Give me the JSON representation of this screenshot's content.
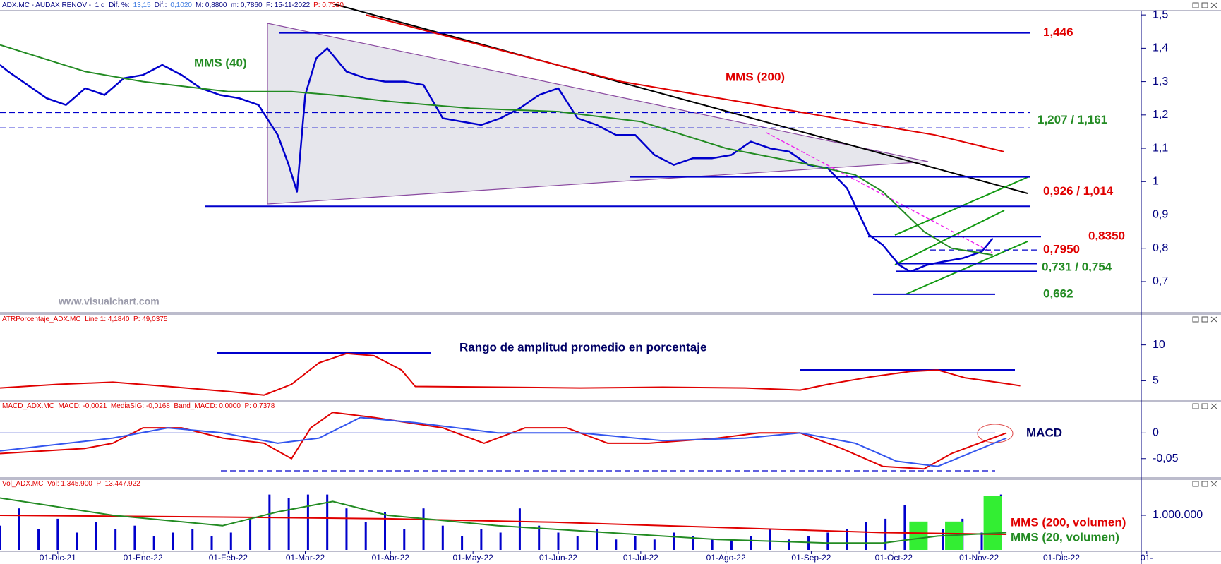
{
  "chart_data": [
    {
      "type": "line",
      "header": [
        {
          "text": "ADX.MC - AUDAX RENOV -  1 d  Dif. %:",
          "color": "#000080"
        },
        {
          "text": "13,15",
          "color": "#3d7be0"
        },
        {
          "text": "Dif.:",
          "color": "#000080"
        },
        {
          "text": "0,1020",
          "color": "#3d7be0"
        },
        {
          "text": "M: 0,8800  m: 0,7860  F: 15-11-2022",
          "color": "#000080"
        },
        {
          "text": "P: 0,7320",
          "color": "#e00000"
        }
      ],
      "xlim": [
        -21,
        394
      ],
      "ylim": [
        0.611,
        1.513
      ],
      "yticks": [
        {
          "value": 1.5,
          "label": "1,5"
        },
        {
          "value": 1.4,
          "label": "1,4"
        },
        {
          "value": 1.3,
          "label": "1,3"
        },
        {
          "value": 1.2,
          "label": "1,2"
        },
        {
          "value": 1.1,
          "label": "1,1"
        },
        {
          "value": 1,
          "label": "1"
        },
        {
          "value": 0.9,
          "label": "0,9"
        },
        {
          "value": 0.8,
          "label": "0,8"
        },
        {
          "value": 0.7,
          "label": "0,7"
        }
      ],
      "series": [
        {
          "color": "#0000cc",
          "x": [
            -21,
            -18,
            -11,
            -4,
            3,
            10,
            17,
            24,
            31,
            38,
            45,
            52,
            59,
            66,
            73,
            80,
            84,
            87,
            90,
            94,
            98,
            105,
            112,
            119,
            126,
            133,
            140,
            147,
            154,
            161,
            168,
            175,
            182,
            189,
            196,
            203,
            210,
            217,
            224,
            231,
            238,
            245,
            252,
            259,
            266,
            273,
            280,
            287,
            291,
            295,
            300,
            306,
            310,
            316,
            322,
            329,
            336,
            340
          ],
          "values": [
            1.35,
            1.33,
            1.29,
            1.25,
            1.23,
            1.28,
            1.26,
            1.31,
            1.32,
            1.35,
            1.32,
            1.28,
            1.26,
            1.25,
            1.23,
            1.14,
            1.05,
            0.97,
            1.26,
            1.37,
            1.4,
            1.33,
            1.31,
            1.3,
            1.3,
            1.29,
            1.19,
            1.18,
            1.17,
            1.19,
            1.22,
            1.26,
            1.28,
            1.19,
            1.17,
            1.14,
            1.14,
            1.08,
            1.05,
            1.07,
            1.07,
            1.08,
            1.12,
            1.1,
            1.09,
            1.05,
            1.04,
            0.98,
            0.91,
            0.84,
            0.81,
            0.75,
            0.73,
            0.75,
            0.76,
            0.77,
            0.79,
            0.83
          ]
        },
        {
          "color": "#228b22",
          "x": [
            -21,
            10,
            31,
            62,
            85,
            100,
            121,
            150,
            182,
            212,
            243,
            274,
            290,
            300,
            315,
            325,
            340
          ],
          "values": [
            1.41,
            1.33,
            1.3,
            1.27,
            1.27,
            1.26,
            1.24,
            1.22,
            1.21,
            1.18,
            1.1,
            1.05,
            1.02,
            0.97,
            0.85,
            0.8,
            0.78
          ]
        },
        {
          "color": "#e00000",
          "x": [
            112,
            149,
            205,
            262,
            290,
            319,
            344
          ],
          "values": [
            1.5,
            1.42,
            1.3,
            1.22,
            1.18,
            1.14,
            1.09
          ]
        }
      ],
      "annotations": [
        {
          "text": "MMS (40)",
          "color": "#228b22"
        },
        {
          "text": "MMS (200)",
          "color": "#e00000"
        },
        {
          "text": "www.visualchart.com",
          "color": "#9a9aaa"
        }
      ],
      "levels": [
        {
          "label": "1,446",
          "values": [
            1.446
          ],
          "color": "#e00000",
          "dashed": false
        },
        {
          "label": "1,207 / 1,161",
          "values": [
            1.207,
            1.161
          ],
          "color": "#228b22",
          "dashed": true
        },
        {
          "label": "0,926 / 1,014",
          "values": [
            0.926,
            1.014
          ],
          "color": "#e00000",
          "dashed": false
        },
        {
          "label": "0,8350",
          "values": [
            0.835
          ],
          "color": "#e00000",
          "dashed": false
        },
        {
          "label": "0,7950",
          "values": [
            0.795
          ],
          "color": "#e00000",
          "dashed": true
        },
        {
          "label": "0,731 / 0,754",
          "values": [
            0.731,
            0.754
          ],
          "color": "#228b22",
          "dashed": false
        },
        {
          "label": "0,662",
          "values": [
            0.662
          ],
          "color": "#228b22",
          "dashed": false
        }
      ]
    },
    {
      "type": "line",
      "header": [
        {
          "text": "ATRPorcentaje_ADX.MC  Line 1: 4,1840  P: 49,0375",
          "color": "#e00000"
        }
      ],
      "xlim": [
        -21,
        394
      ],
      "ylim": [
        2.38,
        14.1
      ],
      "yticks": [
        5,
        10
      ],
      "series": [
        {
          "color": "#e00000",
          "x": [
            -21,
            0,
            20,
            40,
            62,
            75,
            85,
            95,
            105,
            115,
            125,
            130,
            160,
            190,
            220,
            250,
            270,
            280,
            295,
            310,
            320,
            330,
            345,
            350
          ],
          "values": [
            4,
            4.5,
            4.8,
            4.2,
            3.5,
            3.0,
            4.5,
            7.5,
            8.8,
            8.5,
            6.5,
            4.2,
            4.1,
            4.0,
            4.1,
            4.0,
            3.7,
            4.5,
            5.5,
            6.3,
            6.5,
            5.4,
            4.6,
            4.3
          ]
        }
      ],
      "annotations": [
        {
          "text": "Rango de amplitud promedio en porcentaje",
          "color": "#000066"
        }
      ]
    },
    {
      "type": "line",
      "header": [
        {
          "text": "MACD_ADX.MC  MACD: -0,0021  MediaSIG: -0,0168  Band_MACD: 0,0000  P: 0,7378",
          "color": "#e00000"
        }
      ],
      "xlim": [
        -21,
        394
      ],
      "ylim": [
        -0.086,
        0.0595
      ],
      "yticks": [
        0,
        {
          "value": -0.05,
          "label": "-0,05"
        }
      ],
      "series": [
        {
          "color": "#e00000",
          "x": [
            -21,
            10,
            20,
            31,
            45,
            60,
            75,
            85,
            92,
            100,
            115,
            140,
            155,
            170,
            185,
            200,
            215,
            240,
            255,
            270,
            285,
            300,
            315,
            325,
            345
          ],
          "values": [
            -0.04,
            -0.03,
            -0.02,
            0.01,
            0.01,
            -0.01,
            -0.02,
            -0.05,
            0.01,
            0.04,
            0.03,
            0.01,
            -0.02,
            0.01,
            0.01,
            -0.02,
            -0.02,
            -0.01,
            0,
            0,
            -0.03,
            -0.065,
            -0.07,
            -0.04,
            0
          ]
        },
        {
          "color": "#3355ee",
          "x": [
            -21,
            20,
            40,
            60,
            80,
            95,
            110,
            130,
            160,
            190,
            220,
            250,
            270,
            290,
            305,
            320,
            345
          ],
          "values": [
            -0.035,
            -0.01,
            0.01,
            0.0,
            -0.02,
            -0.01,
            0.03,
            0.02,
            0.0,
            0.0,
            -0.015,
            -0.01,
            0.0,
            -0.02,
            -0.055,
            -0.065,
            -0.01
          ]
        }
      ],
      "annotations": [
        {
          "text": "MACD",
          "color": "#000066"
        }
      ]
    },
    {
      "type": "bar",
      "header": [
        {
          "text": "Vol_ADX.MC  Vol: 1.345.900  P: 13.447.922",
          "color": "#e00000"
        }
      ],
      "xlim": [
        -21,
        394
      ],
      "ylim": [
        0,
        2000000
      ],
      "yticks": [
        {
          "value": 1000000,
          "label": "1.000.000"
        }
      ],
      "xticks": [
        {
          "value": 0,
          "label": "01-Dic-21"
        },
        {
          "value": 31,
          "label": "01-Ene-22"
        },
        {
          "value": 62,
          "label": "01-Feb-22"
        },
        {
          "value": 90,
          "label": "01-Mar-22"
        },
        {
          "value": 121,
          "label": "01-Abr-22"
        },
        {
          "value": 151,
          "label": "01-May-22"
        },
        {
          "value": 182,
          "label": "01-Jun-22"
        },
        {
          "value": 212,
          "label": "01-Jul-22"
        },
        {
          "value": 243,
          "label": "01-Ago-22"
        },
        {
          "value": 274,
          "label": "01-Sep-22"
        },
        {
          "value": 304,
          "label": "01-Oct-22"
        },
        {
          "value": 335,
          "label": "01-Nov-22"
        },
        {
          "value": 365,
          "label": "01-Dic-22"
        },
        {
          "value": 396,
          "label": "01-"
        }
      ],
      "series": [
        {
          "color": "#0000cc",
          "x": [
            -21,
            -14,
            -7,
            0,
            7,
            14,
            21,
            28,
            35,
            42,
            49,
            56,
            63,
            70,
            77,
            84,
            91,
            98,
            105,
            112,
            119,
            126,
            133,
            140,
            147,
            154,
            161,
            168,
            175,
            182,
            189,
            196,
            203,
            210,
            217,
            224,
            231,
            238,
            245,
            252,
            259,
            266,
            273,
            280,
            287,
            294,
            301,
            308,
            315,
            322,
            329,
            336,
            343
          ],
          "values": [
            700000,
            1200000,
            600000,
            900000,
            500000,
            800000,
            600000,
            700000,
            400000,
            500000,
            600000,
            400000,
            500000,
            900000,
            1600000,
            1500000,
            1600000,
            1600000,
            1200000,
            800000,
            1100000,
            600000,
            1200000,
            700000,
            400000,
            600000,
            500000,
            1200000,
            700000,
            500000,
            400000,
            600000,
            300000,
            400000,
            300000,
            500000,
            400000,
            300000,
            300000,
            400000,
            600000,
            300000,
            400000,
            500000,
            600000,
            800000,
            900000,
            1300000,
            700000,
            600000,
            900000,
            500000,
            1600000
          ]
        },
        {
          "color": "#33ee33",
          "wide": true,
          "x": [
            313,
            326,
            340
          ],
          "values": [
            820000,
            820000,
            1570000
          ]
        },
        {
          "type": "line",
          "color": "#e00000",
          "x": [
            -21,
            60,
            120,
            180,
            240,
            300,
            345
          ],
          "values": [
            1000000,
            950000,
            900000,
            800000,
            650000,
            500000,
            450000
          ]
        },
        {
          "type": "line",
          "color": "#228b22",
          "x": [
            -21,
            20,
            60,
            80,
            100,
            120,
            160,
            200,
            240,
            280,
            300,
            320,
            345
          ],
          "values": [
            1500000,
            1000000,
            700000,
            1100000,
            1400000,
            1000000,
            700000,
            500000,
            300000,
            200000,
            200000,
            400000,
            500000
          ]
        }
      ],
      "annotations": [
        {
          "text": "MMS (200, volumen)",
          "color": "#e00000"
        },
        {
          "text": "MMS (20, volumen)",
          "color": "#228b22"
        }
      ]
    }
  ]
}
